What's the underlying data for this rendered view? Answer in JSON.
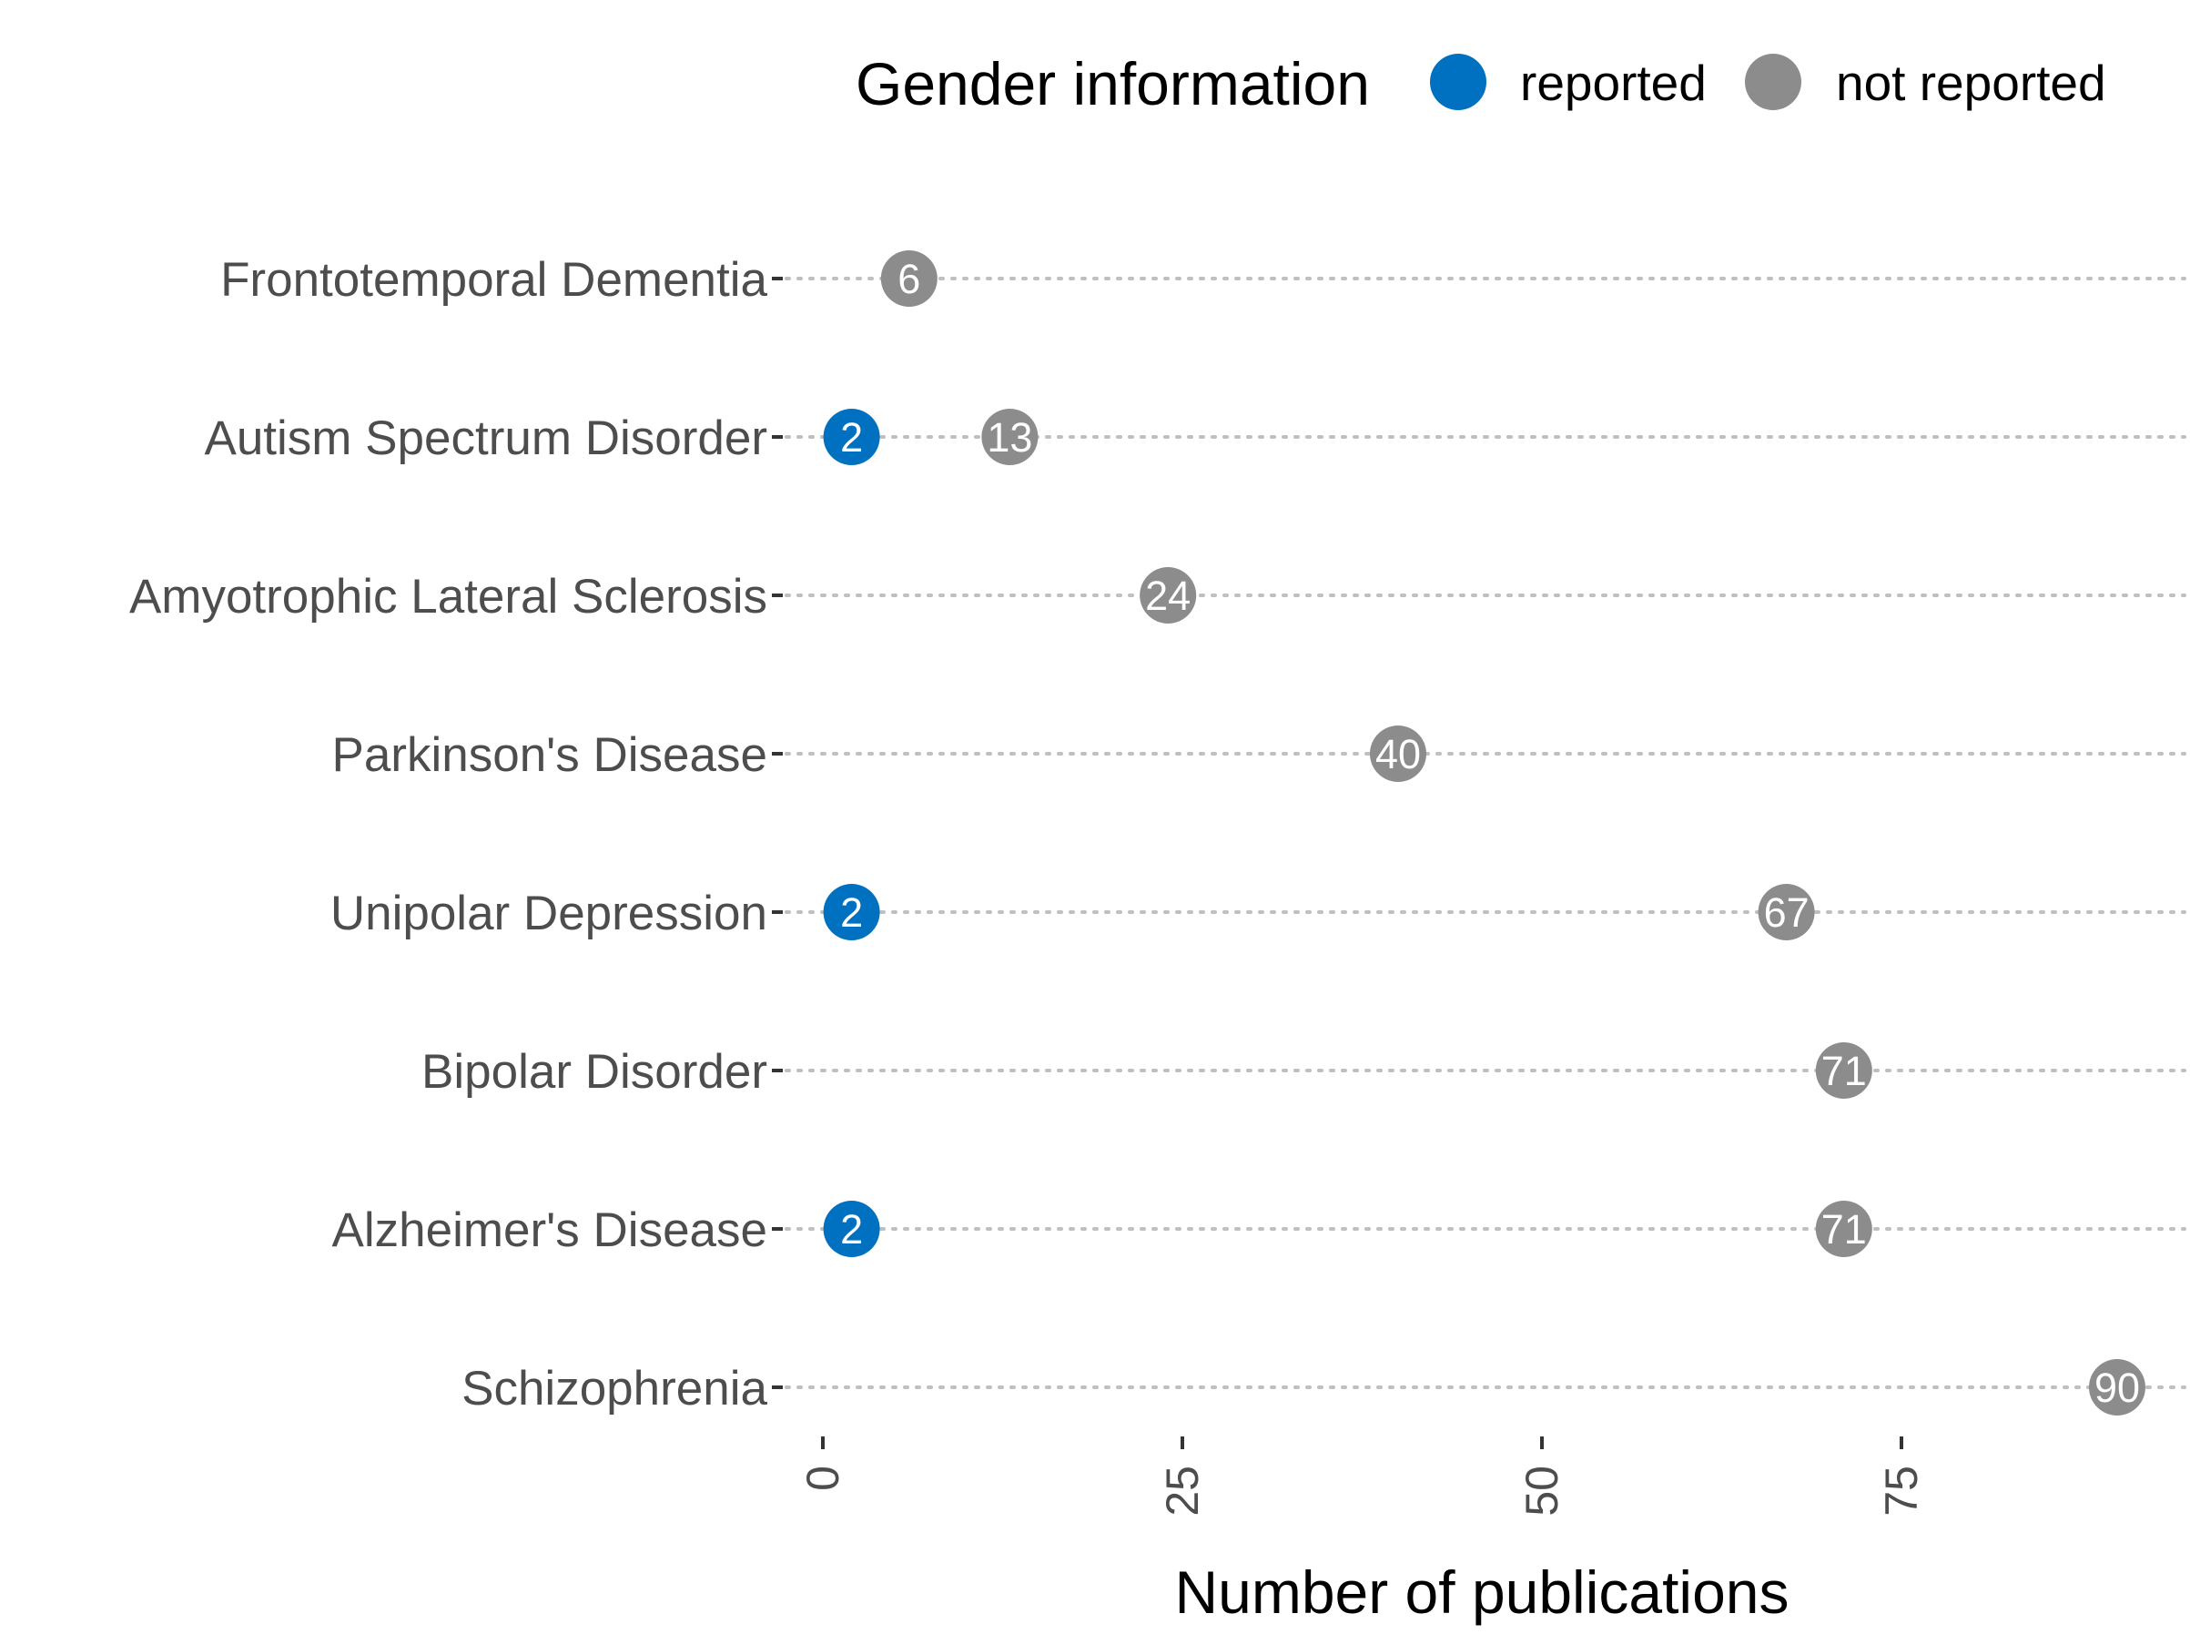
{
  "chart_data": {
    "type": "scatter",
    "xlabel": "Number of publications",
    "x_ticks": [
      "0",
      "25",
      "50",
      "75"
    ],
    "xlim": [
      -2,
      94
    ],
    "grid": "dotted horizontal guide lines per category",
    "legend": {
      "title": "Gender information",
      "placement": "top",
      "items": [
        {
          "label": "reported",
          "color": "#0070c0"
        },
        {
          "label": "not reported",
          "color": "#8c8c8c"
        }
      ]
    },
    "categories": [
      "Frontotemporal Dementia",
      "Autism Spectrum Disorder",
      "Amyotrophic Lateral Sclerosis",
      "Parkinson's Disease",
      "Unipolar Depression",
      "Bipolar Disorder",
      "Alzheimer's Disease",
      "Schizophrenia"
    ],
    "series": [
      {
        "name": "reported",
        "color": "#0070c0",
        "values": [
          null,
          2,
          null,
          null,
          2,
          null,
          2,
          null
        ]
      },
      {
        "name": "not reported",
        "color": "#8c8c8c",
        "values": [
          6,
          13,
          24,
          40,
          67,
          71,
          71,
          90
        ]
      }
    ]
  }
}
